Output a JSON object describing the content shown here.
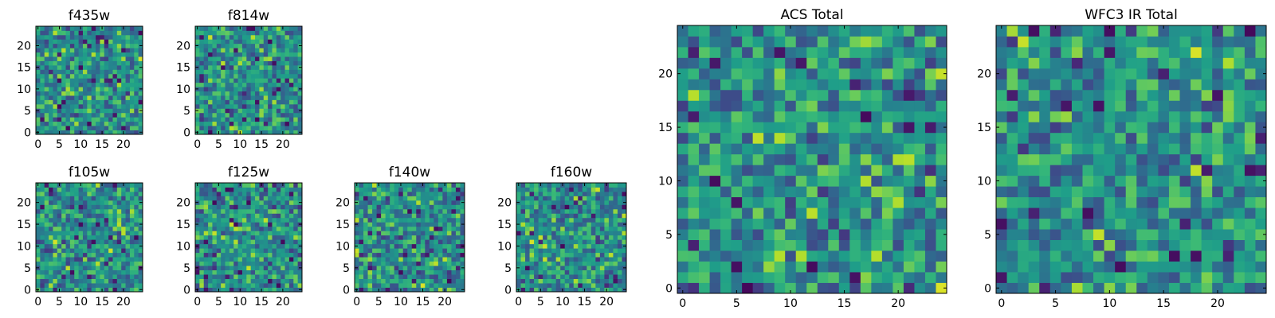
{
  "chart_data": [
    {
      "type": "heatmap",
      "id": "f435w",
      "title": "f435w",
      "grid_size": 25,
      "xlim": [
        0,
        24
      ],
      "ylim": [
        0,
        24
      ],
      "xticks": [
        0,
        5,
        10,
        15,
        20
      ],
      "yticks": [
        0,
        5,
        10,
        15,
        20
      ],
      "colormap": "viridis",
      "seed": 17
    },
    {
      "type": "heatmap",
      "id": "f814w",
      "title": "f814w",
      "grid_size": 25,
      "xlim": [
        0,
        24
      ],
      "ylim": [
        0,
        24
      ],
      "xticks": [
        0,
        5,
        10,
        15,
        20
      ],
      "yticks": [
        0,
        5,
        10,
        15,
        20
      ],
      "colormap": "viridis",
      "seed": 29
    },
    {
      "type": "heatmap",
      "id": "f105w",
      "title": "f105w",
      "grid_size": 25,
      "xlim": [
        0,
        24
      ],
      "ylim": [
        0,
        24
      ],
      "xticks": [
        0,
        5,
        10,
        15,
        20
      ],
      "yticks": [
        0,
        5,
        10,
        15,
        20
      ],
      "colormap": "viridis",
      "seed": 41
    },
    {
      "type": "heatmap",
      "id": "f125w",
      "title": "f125w",
      "grid_size": 25,
      "xlim": [
        0,
        24
      ],
      "ylim": [
        0,
        24
      ],
      "xticks": [
        0,
        5,
        10,
        15,
        20
      ],
      "yticks": [
        0,
        5,
        10,
        15,
        20
      ],
      "colormap": "viridis",
      "seed": 53
    },
    {
      "type": "heatmap",
      "id": "f140w",
      "title": "f140w",
      "grid_size": 25,
      "xlim": [
        0,
        24
      ],
      "ylim": [
        0,
        24
      ],
      "xticks": [
        0,
        5,
        10,
        15,
        20
      ],
      "yticks": [
        0,
        5,
        10,
        15,
        20
      ],
      "colormap": "viridis",
      "seed": 67
    },
    {
      "type": "heatmap",
      "id": "f160w",
      "title": "f160w",
      "grid_size": 25,
      "xlim": [
        0,
        24
      ],
      "ylim": [
        0,
        24
      ],
      "xticks": [
        0,
        5,
        10,
        15,
        20
      ],
      "yticks": [
        0,
        5,
        10,
        15,
        20
      ],
      "colormap": "viridis",
      "seed": 79
    },
    {
      "type": "heatmap",
      "id": "acs-total",
      "title": "ACS Total",
      "grid_size": 25,
      "xlim": [
        0,
        24
      ],
      "ylim": [
        0,
        24
      ],
      "xticks": [
        0,
        5,
        10,
        15,
        20
      ],
      "yticks": [
        0,
        5,
        10,
        15,
        20
      ],
      "colormap": "viridis",
      "seed": 97
    },
    {
      "type": "heatmap",
      "id": "wfc3-ir-total",
      "title": "WFC3 IR Total",
      "grid_size": 25,
      "xlim": [
        0,
        24
      ],
      "ylim": [
        0,
        24
      ],
      "xticks": [
        0,
        5,
        10,
        15,
        20
      ],
      "yticks": [
        0,
        5,
        10,
        15,
        20
      ],
      "colormap": "viridis",
      "seed": 113
    }
  ]
}
